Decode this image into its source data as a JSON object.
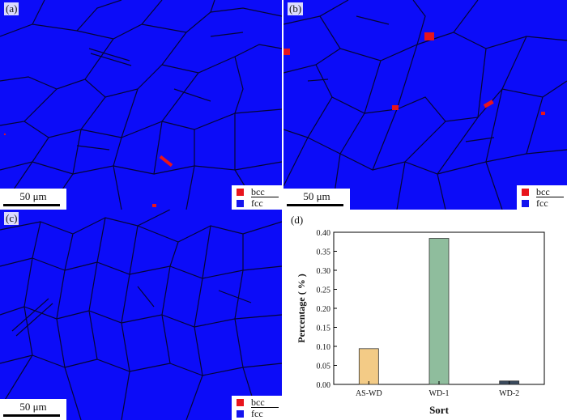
{
  "panels": {
    "a": {
      "label": "(a)",
      "scale_bar": "50 μm"
    },
    "b": {
      "label": "(b)",
      "scale_bar": "50 μm"
    },
    "c": {
      "label": "(c)",
      "scale_bar": "50 μm"
    },
    "d": {
      "label": "(d)"
    }
  },
  "legend": {
    "bcc": {
      "label": "bcc",
      "color": "#e8141c"
    },
    "fcc": {
      "label": "fcc",
      "color": "#1414ee"
    }
  },
  "map_colors": {
    "background": "#0c0cf8",
    "boundary": "#050535",
    "bcc_phase": "#e8141c"
  },
  "chart_data": {
    "type": "bar",
    "categories": [
      "AS-WD",
      "WD-1",
      "WD-2"
    ],
    "values": [
      0.094,
      0.384,
      0.009
    ],
    "colors": [
      "#f3cb86",
      "#8fbd9d",
      "#3a4a5e"
    ],
    "xlabel": "Sort",
    "ylabel": "Percentage ( % )",
    "ylim": [
      0.0,
      0.4
    ],
    "yticks": [
      "0.00",
      "0.05",
      "0.10",
      "0.15",
      "0.20",
      "0.25",
      "0.30",
      "0.35",
      "0.40"
    ],
    "grid": false
  }
}
